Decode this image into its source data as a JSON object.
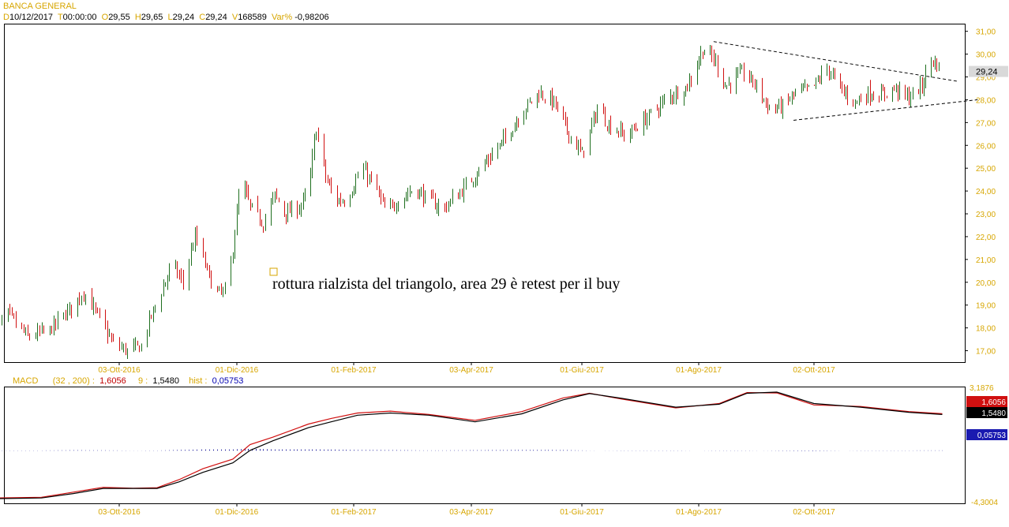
{
  "header": {
    "title": "BANCA GENERAL",
    "d_label": "D",
    "d_value": "10/12/2017",
    "t_label": "T",
    "t_value": "00:00:00",
    "o_label": "O",
    "o_value": "29,55",
    "h_label": "H",
    "h_value": "29,65",
    "l_label": "L",
    "l_value": "29,24",
    "c_label": "C",
    "c_value": "29,24",
    "v_label": "V",
    "v_value": "168589",
    "var_label": "Var%",
    "var_value": "-0,98206"
  },
  "annotation": {
    "text": "rottura rialzista del triangolo, area 29 è retest per il buy"
  },
  "macd_header": {
    "name": "MACD",
    "params": "(32 , 200) :",
    "macd_value": "1,6056",
    "signal_label": "9 :",
    "signal_value": "1,5480",
    "hist_label": "hist :",
    "hist_value": "0,05753"
  },
  "colors": {
    "up": "#1f6f1f",
    "down": "#d01010",
    "accent": "#d7a600",
    "macd": "#d01010",
    "signal": "#000000",
    "hist": "#1a1a9a"
  },
  "chart_data": [
    {
      "type": "candlestick",
      "title": "BANCA GENERAL",
      "x_tick_labels": [
        "03-Ott-2016",
        "01-Dic-2016",
        "01-Feb-2017",
        "03-Apr-2017",
        "01-Giu-2017",
        "01-Ago-2017",
        "02-Ott-2017"
      ],
      "x_range": [
        "2016-08-01",
        "2017-12-10"
      ],
      "y_tick_labels": [
        "17,00",
        "18,00",
        "19,00",
        "20,00",
        "21,00",
        "22,00",
        "23,00",
        "24,00",
        "25,00",
        "26,00",
        "27,00",
        "28,00",
        "29,00",
        "30,00",
        "31,00"
      ],
      "ylim": [
        16.5,
        31.3
      ],
      "last_price_label": "29,24",
      "close_path": [
        [
          "2016-08-01",
          17.8
        ],
        [
          "2016-08-08",
          18.6
        ],
        [
          "2016-08-18",
          17.6
        ],
        [
          "2016-08-29",
          17.9
        ],
        [
          "2016-09-09",
          18.9
        ],
        [
          "2016-09-15",
          19.6
        ],
        [
          "2016-09-23",
          18.4
        ],
        [
          "2016-09-30",
          17.3
        ],
        [
          "2016-10-07",
          17.0
        ],
        [
          "2016-10-14",
          17.2
        ],
        [
          "2016-10-18",
          18.3
        ],
        [
          "2016-10-25",
          19.8
        ],
        [
          "2016-10-29",
          20.8
        ],
        [
          "2016-11-04",
          20.0
        ],
        [
          "2016-11-10",
          22.0
        ],
        [
          "2016-11-16",
          20.5
        ],
        [
          "2016-11-20",
          19.5
        ],
        [
          "2016-11-26",
          19.6
        ],
        [
          "2016-11-29",
          21.5
        ],
        [
          "2016-12-03",
          24.5
        ],
        [
          "2016-12-08",
          23.3
        ],
        [
          "2016-12-15",
          22.6
        ],
        [
          "2016-12-21",
          23.8
        ],
        [
          "2016-12-27",
          23.0
        ],
        [
          "2017-01-03",
          23.3
        ],
        [
          "2017-01-08",
          24.0
        ],
        [
          "2017-01-12",
          26.8
        ],
        [
          "2017-01-17",
          24.6
        ],
        [
          "2017-01-22",
          23.6
        ],
        [
          "2017-01-28",
          23.6
        ],
        [
          "2017-02-05",
          25.0
        ],
        [
          "2017-02-12",
          24.2
        ],
        [
          "2017-02-18",
          23.0
        ],
        [
          "2017-02-24",
          23.6
        ],
        [
          "2017-03-04",
          24.1
        ],
        [
          "2017-03-12",
          23.6
        ],
        [
          "2017-03-19",
          23.2
        ],
        [
          "2017-03-30",
          24.1
        ],
        [
          "2017-04-10",
          25.2
        ],
        [
          "2017-04-20",
          26.2
        ],
        [
          "2017-05-01",
          27.6
        ],
        [
          "2017-05-09",
          28.3
        ],
        [
          "2017-05-17",
          27.9
        ],
        [
          "2017-05-25",
          26.5
        ],
        [
          "2017-06-01",
          25.6
        ],
        [
          "2017-06-09",
          27.6
        ],
        [
          "2017-06-15",
          26.9
        ],
        [
          "2017-06-24",
          26.4
        ],
        [
          "2017-07-06",
          27.3
        ],
        [
          "2017-07-16",
          28.1
        ],
        [
          "2017-07-26",
          28.6
        ],
        [
          "2017-08-03",
          30.2
        ],
        [
          "2017-08-10",
          29.7
        ],
        [
          "2017-08-15",
          28.6
        ],
        [
          "2017-08-25",
          29.2
        ],
        [
          "2017-09-01",
          28.6
        ],
        [
          "2017-09-08",
          27.6
        ],
        [
          "2017-09-15",
          27.7
        ],
        [
          "2017-09-22",
          28.3
        ],
        [
          "2017-10-01",
          28.5
        ],
        [
          "2017-10-09",
          29.4
        ],
        [
          "2017-10-17",
          28.4
        ],
        [
          "2017-10-24",
          27.9
        ],
        [
          "2017-10-31",
          28.3
        ],
        [
          "2017-11-07",
          28.2
        ],
        [
          "2017-11-14",
          28.5
        ],
        [
          "2017-11-22",
          28.1
        ],
        [
          "2017-11-29",
          28.6
        ],
        [
          "2017-12-04",
          29.8
        ],
        [
          "2017-12-10",
          29.24
        ]
      ],
      "trendlines": [
        {
          "name": "",
          "from": [
            "2017-08-09",
            30.55
          ],
          "to": [
            "2017-12-19",
            28.8
          ]
        },
        {
          "name": "",
          "from": [
            "2017-09-21",
            27.1
          ],
          "to": [
            "2017-12-29",
            28.0
          ]
        }
      ]
    },
    {
      "type": "line",
      "title": "MACD",
      "x_tick_labels": [
        "03-Ott-2016",
        "01-Dic-2016",
        "01-Feb-2017",
        "03-Apr-2017",
        "01-Giu-2017",
        "01-Ago-2017",
        "02-Ott-2017"
      ],
      "y_tick_labels": [
        "3,1876",
        "-4,3004"
      ],
      "ylim": [
        -4.3004,
        3.1876
      ],
      "value_labels": [
        "1,6056",
        "1,5480",
        "0,05753"
      ],
      "series": [
        {
          "name": "",
          "points": [
            [
              "2016-08-01",
              -4.15
            ],
            [
              "2016-08-25",
              -4.1
            ],
            [
              "2016-09-10",
              -3.75
            ],
            [
              "2016-09-25",
              -3.42
            ],
            [
              "2016-10-10",
              -3.48
            ],
            [
              "2016-10-22",
              -3.45
            ],
            [
              "2016-11-02",
              -2.9
            ],
            [
              "2016-11-14",
              -2.15
            ],
            [
              "2016-11-29",
              -1.5
            ],
            [
              "2016-12-08",
              -0.5
            ],
            [
              "2016-12-20",
              0.0
            ],
            [
              "2017-01-08",
              0.9
            ],
            [
              "2017-01-20",
              1.28
            ],
            [
              "2017-02-03",
              1.65
            ],
            [
              "2017-02-20",
              1.78
            ],
            [
              "2017-03-12",
              1.55
            ],
            [
              "2017-04-05",
              1.15
            ],
            [
              "2017-04-30",
              1.75
            ],
            [
              "2017-05-22",
              2.68
            ],
            [
              "2017-06-05",
              3.0
            ],
            [
              "2017-06-22",
              2.6
            ],
            [
              "2017-07-20",
              2.0
            ],
            [
              "2017-08-12",
              2.3
            ],
            [
              "2017-08-27",
              3.05
            ],
            [
              "2017-09-12",
              3.02
            ],
            [
              "2017-10-02",
              2.2
            ],
            [
              "2017-10-27",
              2.1
            ],
            [
              "2017-11-22",
              1.75
            ],
            [
              "2017-12-10",
              1.6056
            ]
          ]
        },
        {
          "name": "",
          "points": [
            [
              "2016-08-01",
              -4.2
            ],
            [
              "2016-08-25",
              -4.15
            ],
            [
              "2016-09-10",
              -3.85
            ],
            [
              "2016-09-25",
              -3.5
            ],
            [
              "2016-10-10",
              -3.5
            ],
            [
              "2016-10-22",
              -3.5
            ],
            [
              "2016-11-02",
              -3.05
            ],
            [
              "2016-11-14",
              -2.4
            ],
            [
              "2016-11-29",
              -1.75
            ],
            [
              "2016-12-08",
              -0.9
            ],
            [
              "2016-12-20",
              -0.25
            ],
            [
              "2017-01-08",
              0.65
            ],
            [
              "2017-01-20",
              1.05
            ],
            [
              "2017-02-03",
              1.5
            ],
            [
              "2017-02-20",
              1.65
            ],
            [
              "2017-03-12",
              1.5
            ],
            [
              "2017-04-05",
              1.05
            ],
            [
              "2017-04-30",
              1.6
            ],
            [
              "2017-05-22",
              2.55
            ],
            [
              "2017-06-05",
              2.98
            ],
            [
              "2017-06-22",
              2.65
            ],
            [
              "2017-07-20",
              2.05
            ],
            [
              "2017-08-12",
              2.25
            ],
            [
              "2017-08-27",
              3.0
            ],
            [
              "2017-09-12",
              3.08
            ],
            [
              "2017-10-02",
              2.3
            ],
            [
              "2017-10-27",
              2.05
            ],
            [
              "2017-11-22",
              1.7
            ],
            [
              "2017-12-10",
              1.548
            ]
          ]
        }
      ]
    }
  ]
}
